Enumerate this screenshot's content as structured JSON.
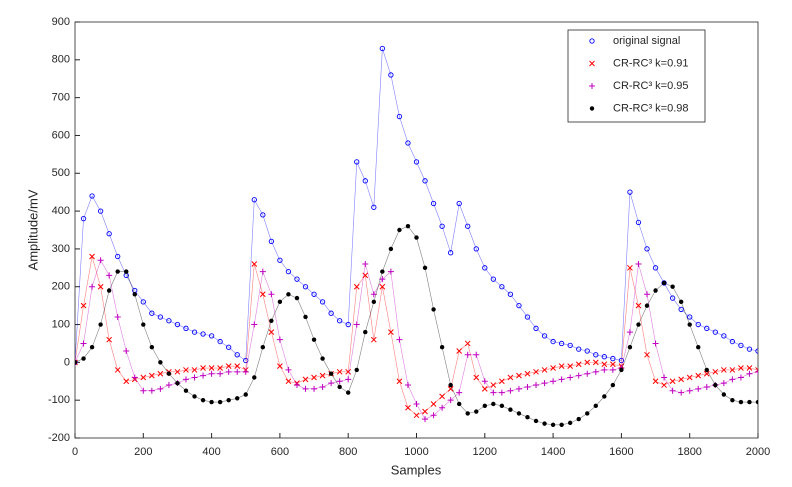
{
  "chart_data": {
    "type": "scatter",
    "x_label": "Samples",
    "y_label": "Amplitude/mV",
    "xlim": [
      0,
      2000
    ],
    "xticks": [
      0,
      200,
      400,
      600,
      800,
      1000,
      1200,
      1400,
      1600,
      1800,
      2000
    ],
    "ylim": [
      -200,
      900
    ],
    "yticks": [
      -200,
      -100,
      0,
      100,
      200,
      300,
      400,
      500,
      600,
      700,
      800,
      900
    ],
    "grid": false,
    "legend": "upper right",
    "x": [
      0,
      25,
      50,
      75,
      100,
      125,
      150,
      175,
      200,
      225,
      250,
      275,
      300,
      325,
      350,
      375,
      400,
      425,
      450,
      475,
      500,
      525,
      550,
      575,
      600,
      625,
      650,
      675,
      700,
      725,
      750,
      775,
      800,
      825,
      850,
      875,
      900,
      925,
      950,
      975,
      1000,
      1025,
      1050,
      1075,
      1100,
      1125,
      1150,
      1175,
      1200,
      1225,
      1250,
      1275,
      1300,
      1325,
      1350,
      1375,
      1400,
      1425,
      1450,
      1475,
      1500,
      1525,
      1550,
      1575,
      1600,
      1625,
      1650,
      1675,
      1700,
      1725,
      1750,
      1775,
      1800,
      1825,
      1850,
      1875,
      1900,
      1925,
      1950,
      1975,
      2000
    ],
    "series": [
      {
        "name": "original signal",
        "color": "#0000ff",
        "marker": "circle",
        "values": [
          0,
          380,
          440,
          400,
          340,
          280,
          230,
          190,
          160,
          130,
          120,
          110,
          100,
          90,
          80,
          75,
          70,
          55,
          40,
          20,
          5,
          430,
          390,
          320,
          270,
          240,
          220,
          200,
          180,
          160,
          130,
          110,
          100,
          530,
          480,
          410,
          830,
          760,
          650,
          580,
          530,
          480,
          420,
          360,
          290,
          420,
          360,
          300,
          250,
          220,
          200,
          180,
          150,
          120,
          90,
          70,
          55,
          50,
          45,
          35,
          30,
          20,
          15,
          10,
          5,
          450,
          370,
          300,
          250,
          210,
          170,
          140,
          120,
          100,
          90,
          80,
          70,
          55,
          45,
          35,
          30
        ]
      },
      {
        "name": "CR-RC³ k=0.91",
        "color": "#ff0000",
        "marker": "x",
        "values": [
          0,
          150,
          280,
          200,
          60,
          -20,
          -50,
          -45,
          -40,
          -35,
          -30,
          -25,
          -25,
          -20,
          -20,
          -15,
          -15,
          -15,
          -10,
          -10,
          -20,
          260,
          180,
          80,
          -10,
          -50,
          -55,
          -45,
          -40,
          -35,
          -30,
          -25,
          -25,
          200,
          230,
          60,
          200,
          80,
          -50,
          -120,
          -140,
          -130,
          -110,
          -90,
          -70,
          30,
          50,
          -40,
          -70,
          -60,
          -50,
          -40,
          -35,
          -30,
          -25,
          -20,
          -15,
          -10,
          -10,
          -5,
          0,
          0,
          -5,
          -5,
          -10,
          250,
          150,
          20,
          -50,
          -60,
          -50,
          -45,
          -40,
          -35,
          -30,
          -25,
          -20,
          -20,
          -15,
          -15,
          -20
        ]
      },
      {
        "name": "CR-RC³ k=0.95",
        "color": "#c000c0",
        "marker": "plus",
        "values": [
          0,
          50,
          200,
          270,
          230,
          120,
          30,
          -40,
          -75,
          -75,
          -70,
          -60,
          -55,
          -45,
          -40,
          -35,
          -30,
          -30,
          -25,
          -25,
          -25,
          100,
          240,
          180,
          60,
          -20,
          -60,
          -70,
          -70,
          -65,
          -55,
          -50,
          -45,
          100,
          260,
          180,
          220,
          240,
          60,
          -60,
          -110,
          -150,
          -140,
          -120,
          -100,
          -80,
          20,
          20,
          -50,
          -80,
          -80,
          -75,
          -70,
          -65,
          -60,
          -55,
          -50,
          -45,
          -40,
          -35,
          -30,
          -25,
          -20,
          -20,
          -15,
          80,
          260,
          180,
          50,
          -40,
          -75,
          -80,
          -75,
          -70,
          -65,
          -60,
          -55,
          -45,
          -40,
          -30,
          -25
        ]
      },
      {
        "name": "CR-RC³ k=0.98",
        "color": "#000000",
        "marker": "dot",
        "values": [
          0,
          10,
          40,
          100,
          190,
          240,
          240,
          180,
          100,
          40,
          0,
          -30,
          -55,
          -75,
          -90,
          -100,
          -105,
          -105,
          -100,
          -95,
          -85,
          -40,
          40,
          110,
          160,
          180,
          170,
          120,
          60,
          10,
          -30,
          -65,
          -80,
          -20,
          80,
          160,
          240,
          300,
          350,
          360,
          330,
          250,
          140,
          40,
          -60,
          -110,
          -135,
          -130,
          -115,
          -110,
          -115,
          -125,
          -135,
          -145,
          -155,
          -162,
          -165,
          -165,
          -160,
          -150,
          -135,
          -115,
          -90,
          -60,
          -20,
          40,
          100,
          150,
          190,
          210,
          200,
          160,
          100,
          40,
          -20,
          -60,
          -85,
          -100,
          -105,
          -105,
          -105
        ]
      }
    ]
  }
}
